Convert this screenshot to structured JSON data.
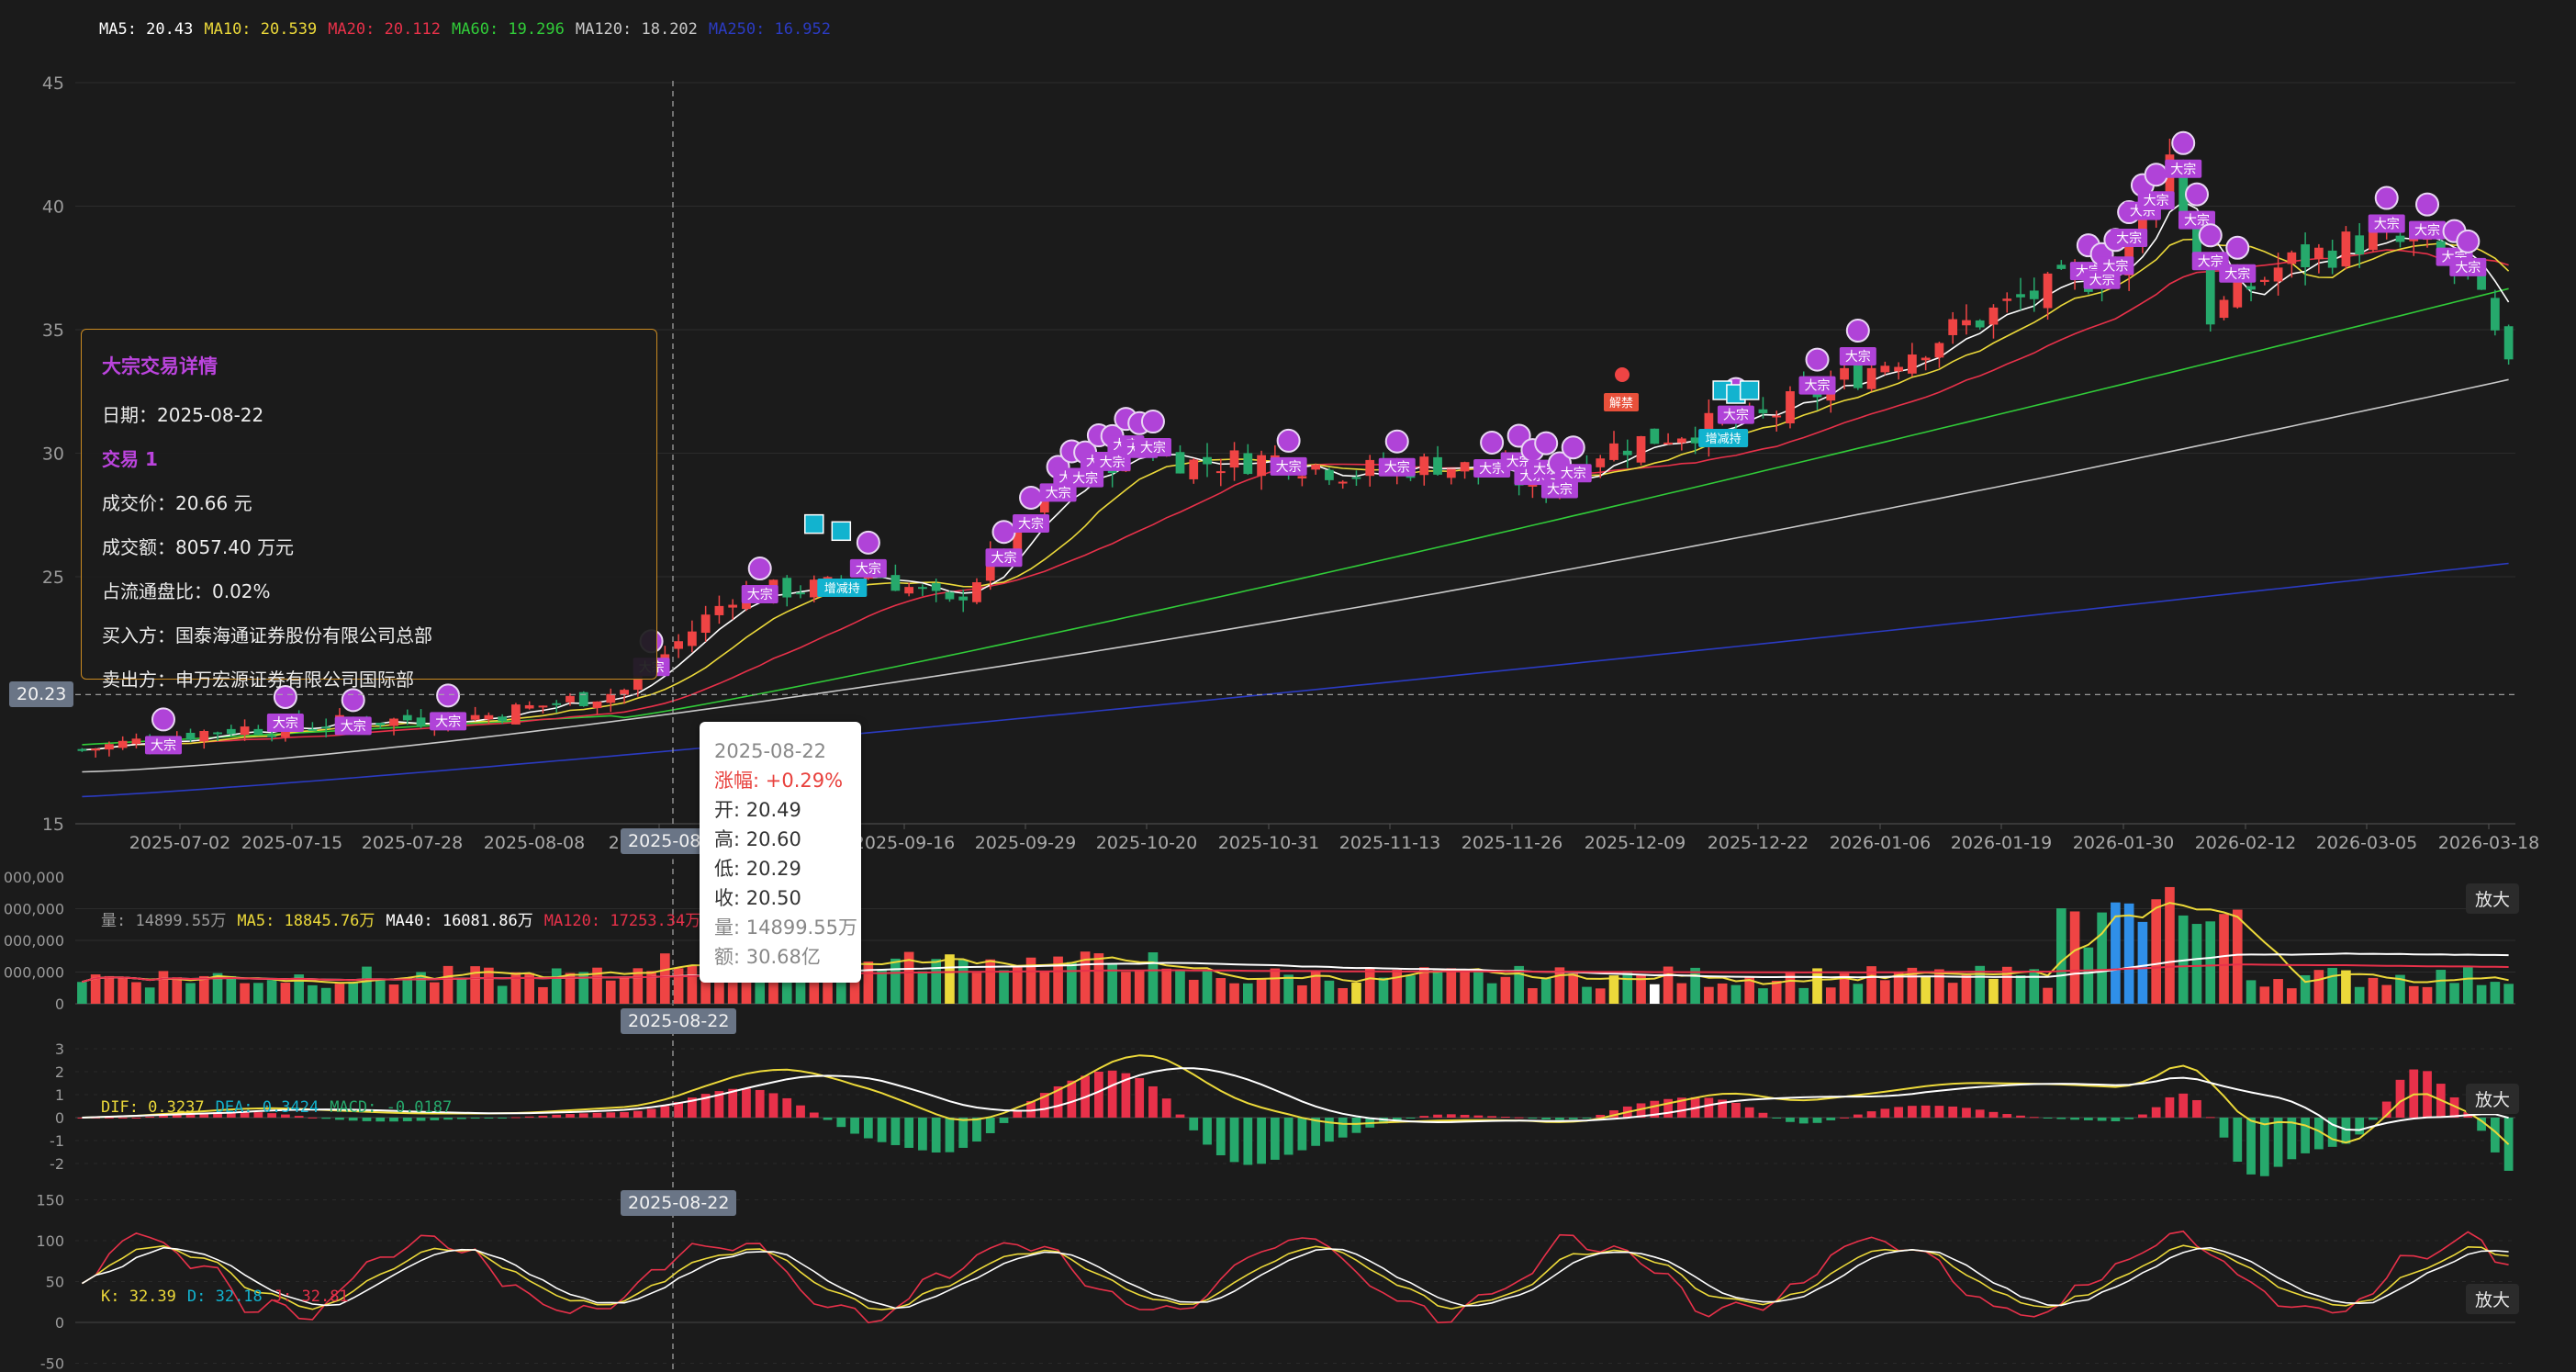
{
  "colors": {
    "up": "#ef4444",
    "down": "#26a96c",
    "ma5": "#ffffff",
    "ma10": "#ecd93a",
    "ma20": "#e8314a",
    "ma60": "#31cc39",
    "ma120": "#c9c9c9",
    "ma250": "#2b3bc2",
    "block": "#b043d8",
    "flag": "#12b3cf"
  },
  "ma_legend": [
    {
      "label": "MA5:",
      "value": "20.43",
      "color": "#ffffff"
    },
    {
      "label": "MA10:",
      "value": "20.539",
      "color": "#ecd93a"
    },
    {
      "label": "MA20:",
      "value": "20.112",
      "color": "#e8314a"
    },
    {
      "label": "MA60:",
      "value": "19.296",
      "color": "#31cc39"
    },
    {
      "label": "MA120:",
      "value": "18.202",
      "color": "#c9c9c9"
    },
    {
      "label": "MA250:",
      "value": "16.952",
      "color": "#2b3bc2"
    }
  ],
  "price_axis": [
    "45",
    "40",
    "35",
    "30",
    "25",
    "15"
  ],
  "crosshair_price": "20.23",
  "date_ticks": [
    "2025-07-02",
    "2025-07-15",
    "2025-07-28",
    "2025-08-08",
    "2025-08-22",
    "2025-09-16",
    "2025-09-29",
    "2025-10-20",
    "2025-10-31",
    "2025-11-13",
    "2025-11-26",
    "2025-12-09",
    "2025-12-22",
    "2026-01-06",
    "2026-01-19",
    "2026-01-30",
    "2026-02-12",
    "2026-03-05",
    "2026-03-18"
  ],
  "crosshair_date": "2025-08-22",
  "block_panel": {
    "title": "大宗交易详情",
    "date_label": "日期：",
    "date": "2025-08-22",
    "trade_title": "交易 1",
    "price_label": "成交价：",
    "price": "20.66 元",
    "amount_label": "成交额：",
    "amount": "8057.40 万元",
    "ratio_label": "占流通盘比：",
    "ratio": "0.02%",
    "buyer_label": "买入方：",
    "buyer": "国泰海通证券股份有限公司总部",
    "seller_label": "卖出方：",
    "seller": "申万宏源证券有限公司国际部"
  },
  "tooltip": {
    "date": "2025-08-22",
    "change": "涨幅: +0.29%",
    "open": "开: 20.49",
    "high": "高: 20.60",
    "low": "低: 20.29",
    "close": "收: 20.50",
    "volume": "量: 14899.55万",
    "turnover": "额: 30.68亿"
  },
  "volume_legend": [
    {
      "label": "量:",
      "value": "14899.55万",
      "color": "#9a9a9a"
    },
    {
      "label": "MA5:",
      "value": "18845.76万",
      "color": "#ecd93a"
    },
    {
      "label": "MA40:",
      "value": "16081.86万",
      "color": "#ffffff"
    },
    {
      "label": "MA120:",
      "value": "17253.34万",
      "color": "#e8314a"
    }
  ],
  "volume_axis": [
    "000,000",
    "000,000",
    "000,000",
    "000,000",
    "0"
  ],
  "macd_legend": [
    {
      "label": "DIF:",
      "value": "0.3237",
      "color": "#ecd93a"
    },
    {
      "label": "DEA:",
      "value": "0.3424",
      "color": "#12b3cf"
    },
    {
      "label": "MACD:",
      "value": "-0.0187",
      "color": "#26a96c"
    }
  ],
  "macd_axis": [
    "3",
    "2",
    "1",
    "0",
    "-1",
    "-2"
  ],
  "kdj_legend": [
    {
      "label": "K:",
      "value": "32.39",
      "color": "#ecd93a"
    },
    {
      "label": "D:",
      "value": "32.18",
      "color": "#12b3cf"
    },
    {
      "label": "J:",
      "value": "32.81",
      "color": "#e8314a"
    }
  ],
  "kdj_axis": [
    "150",
    "100",
    "50",
    "0",
    "-50"
  ],
  "zoom_label": "放大",
  "marker_labels": {
    "block": "大宗",
    "unlock": "解禁",
    "increase": "增减持"
  }
}
